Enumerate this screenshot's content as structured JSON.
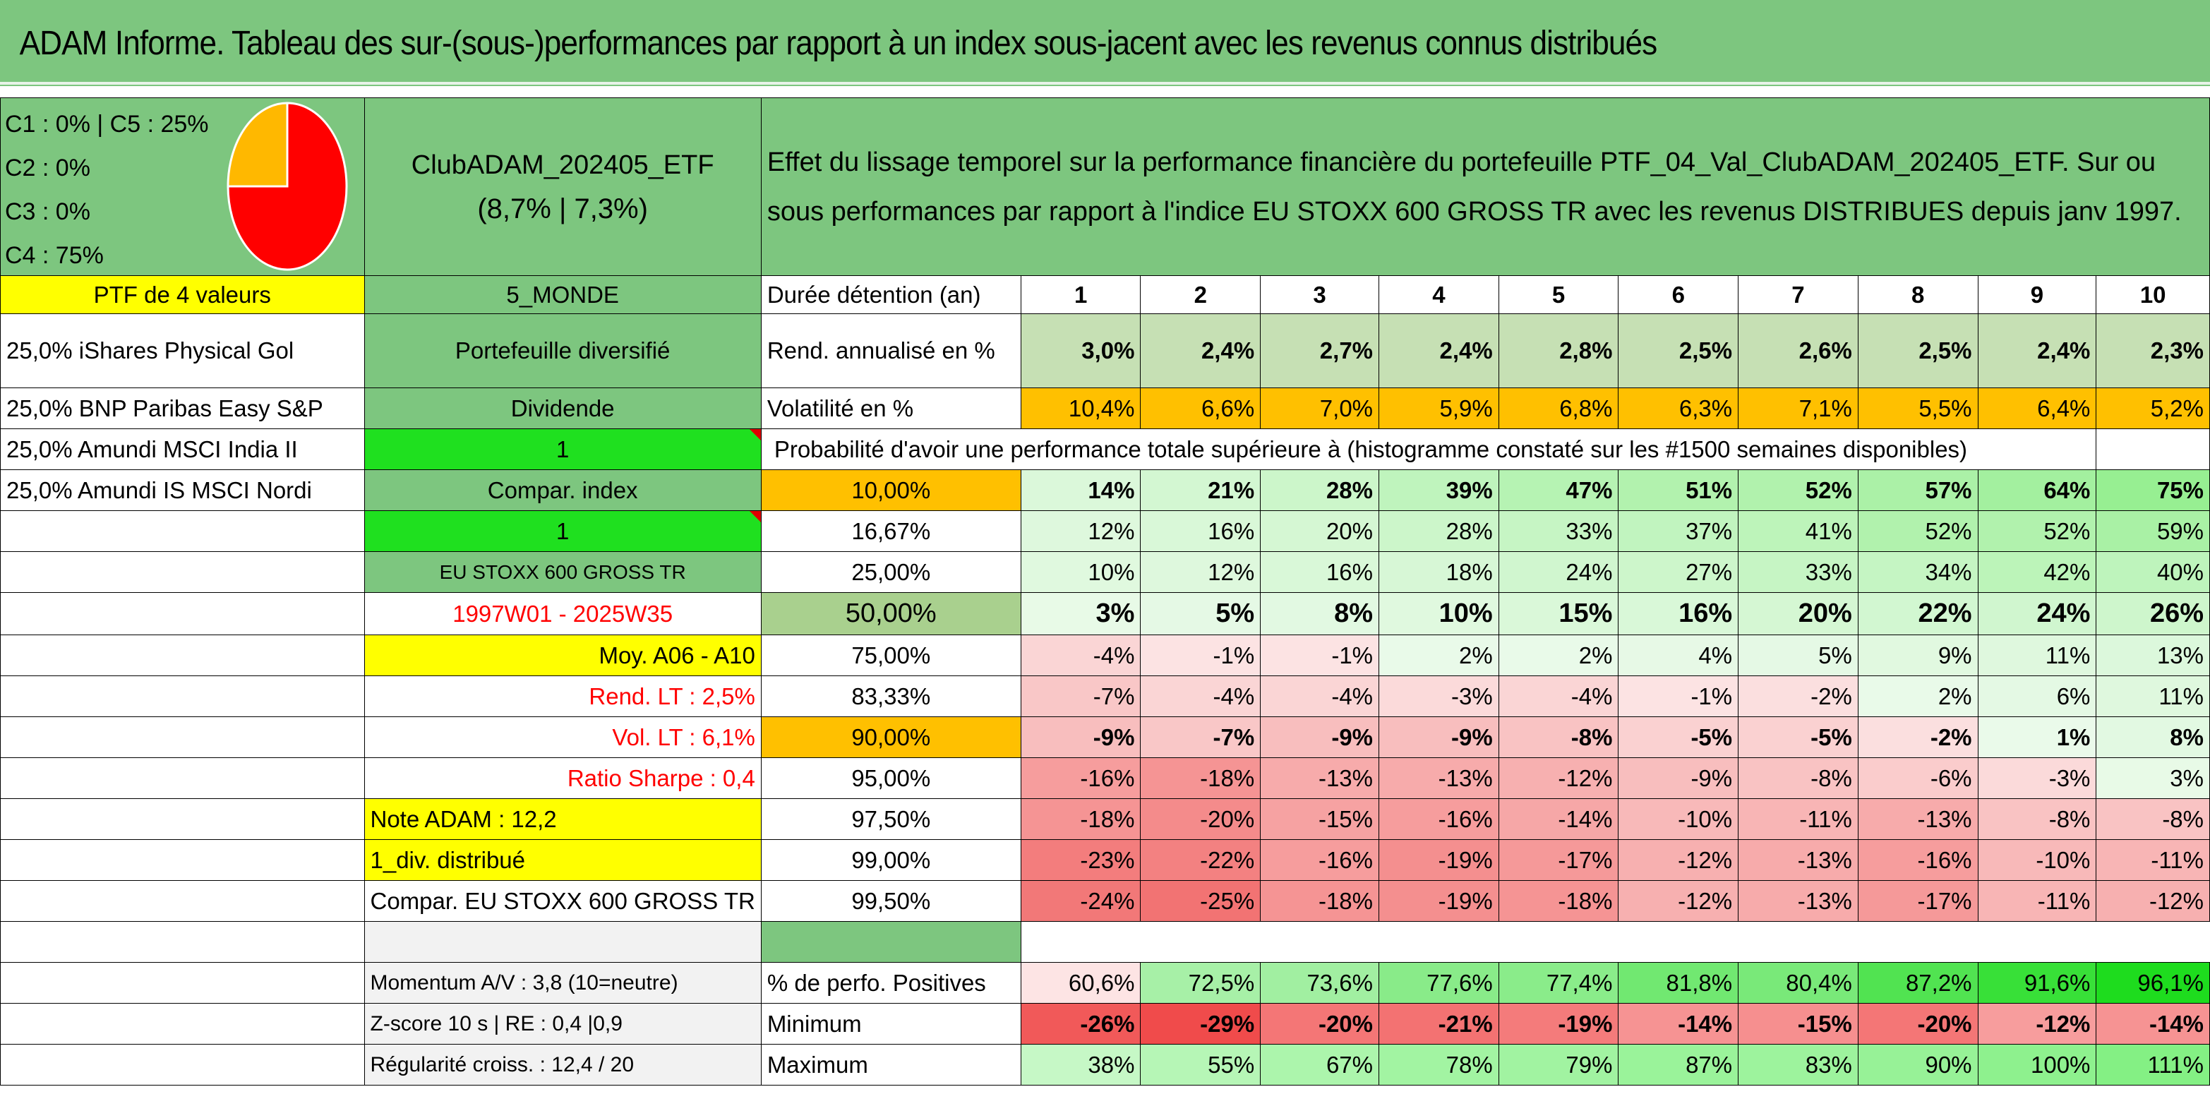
{
  "title": "ADAM Informe. Tableau des sur-(sous-)performances par rapport à un index sous-jacent avec les revenus connus distribués",
  "legend": {
    "line1": "C1 : 0% | C5 : 25%",
    "line2": "C2 : 0%",
    "line3": "C3 : 0%",
    "line4": "C4 : 75%"
  },
  "pie_data": {
    "type": "pie",
    "slices": [
      {
        "label": "C4",
        "value": 75,
        "color": "#ff0000"
      },
      {
        "label": "C5",
        "value": 25,
        "color": "#ffb800"
      }
    ]
  },
  "portfolio": {
    "name": "ClubADAM_202405_ETF",
    "perf": "(8,7% | 7,3%)",
    "description": "Effet du lissage temporel sur la performance financière du portefeuille PTF_04_Val_ClubADAM_202405_ETF. Sur ou sous performances par rapport à l'indice EU STOXX 600 GROSS TR avec les revenus DISTRIBUES depuis janv 1997.",
    "header": "PTF de 4 valeurs",
    "zone": "5_MONDE",
    "type": "Portefeuille diversifié",
    "dividend": "Dividende",
    "one_a": "1",
    "compar": "Compar. index",
    "one_b": "1",
    "index_name": "EU STOXX 600 GROSS TR",
    "period": "1997W01 - 2025W35",
    "moy": "Moy. A06 - A10",
    "rend_lt": "Rend. LT : 2,5%",
    "vol_lt": "Vol. LT : 6,1%",
    "sharpe": "Ratio Sharpe : 0,4",
    "note": "Note ADAM : 12,2",
    "div_note": "1_div. distribué",
    "compar_full": "Compar. EU STOXX 600 GROSS TR",
    "momentum": "Momentum A/V : 3,8 (10=neutre)",
    "zscore": "Z-score 10 s | RE : 0,4 |0,9",
    "regularite": "Régularité croiss. : 12,4 / 20"
  },
  "holdings": [
    "25,0% iShares Physical Gol",
    "25,0% BNP Paribas Easy S&P",
    "25,0% Amundi MSCI India II",
    "25,0% Amundi IS MSCI Nordi"
  ],
  "labels": {
    "duree": "Durée détention (an)",
    "rend": "Rend. annualisé en %",
    "vol": "Volatilité en %",
    "proba": "Probabilité d'avoir une performance totale supérieure à (histogramme constaté sur les #1500 semaines disponibles)",
    "positives": "% de perfo. Positives",
    "minimum": "Minimum",
    "maximum": "Maximum"
  },
  "years": [
    "1",
    "2",
    "3",
    "4",
    "5",
    "6",
    "7",
    "8",
    "9",
    "10"
  ],
  "rend": [
    "3,0%",
    "2,4%",
    "2,7%",
    "2,4%",
    "2,8%",
    "2,5%",
    "2,6%",
    "2,5%",
    "2,4%",
    "2,3%"
  ],
  "vol": [
    "10,4%",
    "6,6%",
    "7,0%",
    "5,9%",
    "6,8%",
    "6,3%",
    "7,1%",
    "5,5%",
    "6,4%",
    "5,2%"
  ],
  "proba_rows": [
    {
      "threshold": "10,00%",
      "values": [
        "14%",
        "21%",
        "28%",
        "39%",
        "47%",
        "51%",
        "52%",
        "57%",
        "64%",
        "75%"
      ]
    },
    {
      "threshold": "16,67%",
      "values": [
        "12%",
        "16%",
        "20%",
        "28%",
        "33%",
        "37%",
        "41%",
        "52%",
        "52%",
        "59%"
      ]
    },
    {
      "threshold": "25,00%",
      "values": [
        "10%",
        "12%",
        "16%",
        "18%",
        "24%",
        "27%",
        "33%",
        "34%",
        "42%",
        "40%"
      ]
    },
    {
      "threshold": "50,00%",
      "values": [
        "3%",
        "5%",
        "8%",
        "10%",
        "15%",
        "16%",
        "20%",
        "22%",
        "24%",
        "26%"
      ]
    },
    {
      "threshold": "75,00%",
      "values": [
        "-4%",
        "-1%",
        "-1%",
        "2%",
        "2%",
        "4%",
        "5%",
        "9%",
        "11%",
        "13%"
      ]
    },
    {
      "threshold": "83,33%",
      "values": [
        "-7%",
        "-4%",
        "-4%",
        "-3%",
        "-4%",
        "-1%",
        "-2%",
        "2%",
        "6%",
        "11%"
      ]
    },
    {
      "threshold": "90,00%",
      "values": [
        "-9%",
        "-7%",
        "-9%",
        "-9%",
        "-8%",
        "-5%",
        "-5%",
        "-2%",
        "1%",
        "8%"
      ]
    },
    {
      "threshold": "95,00%",
      "values": [
        "-16%",
        "-18%",
        "-13%",
        "-13%",
        "-12%",
        "-9%",
        "-8%",
        "-6%",
        "-3%",
        "3%"
      ]
    },
    {
      "threshold": "97,50%",
      "values": [
        "-18%",
        "-20%",
        "-15%",
        "-16%",
        "-14%",
        "-10%",
        "-11%",
        "-13%",
        "-8%",
        "-8%"
      ]
    },
    {
      "threshold": "99,00%",
      "values": [
        "-23%",
        "-22%",
        "-16%",
        "-19%",
        "-17%",
        "-12%",
        "-13%",
        "-16%",
        "-10%",
        "-11%"
      ]
    },
    {
      "threshold": "99,50%",
      "values": [
        "-24%",
        "-25%",
        "-18%",
        "-19%",
        "-18%",
        "-12%",
        "-13%",
        "-17%",
        "-11%",
        "-12%"
      ]
    }
  ],
  "positives": [
    "60,6%",
    "72,5%",
    "73,6%",
    "77,6%",
    "77,4%",
    "81,8%",
    "80,4%",
    "87,2%",
    "91,6%",
    "96,1%"
  ],
  "minimum": [
    "-26%",
    "-29%",
    "-20%",
    "-21%",
    "-19%",
    "-14%",
    "-15%",
    "-20%",
    "-12%",
    "-14%"
  ],
  "maximum": [
    "38%",
    "55%",
    "67%",
    "78%",
    "79%",
    "87%",
    "83%",
    "90%",
    "100%",
    "111%"
  ],
  "colors": {
    "header_green": "#7dc67f",
    "yellow": "#ffff00",
    "orange": "#ffc000",
    "bright_green": "#1fe01f",
    "red_text": "#ff0000"
  }
}
